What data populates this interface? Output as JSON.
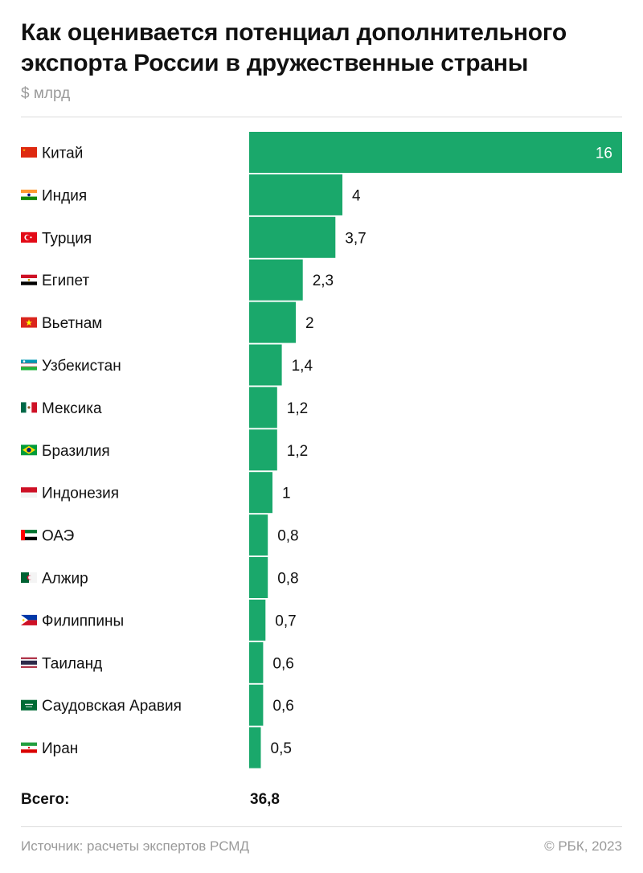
{
  "header": {
    "title_line1": "Как оценивается потенциал дополнительного",
    "title_line2": "экспорта России в дружественные страны",
    "unit": "$ млрд"
  },
  "colors": {
    "bar": "#1aa86b"
  },
  "chart_data": {
    "type": "bar",
    "orientation": "horizontal",
    "title": "Как оценивается потенциал дополнительного экспорта России в дружественные страны",
    "unit": "$ млрд",
    "categories": [
      "Китай",
      "Индия",
      "Турция",
      "Египет",
      "Вьетнам",
      "Узбекистан",
      "Мексика",
      "Бразилия",
      "Индонезия",
      "ОАЭ",
      "Алжир",
      "Филиппины",
      "Таиланд",
      "Саудовская Аравия",
      "Иран"
    ],
    "values": [
      16,
      4,
      3.7,
      2.3,
      2,
      1.4,
      1.2,
      1.2,
      1,
      0.8,
      0.8,
      0.7,
      0.6,
      0.6,
      0.5
    ],
    "value_labels": [
      "16",
      "4",
      "3,7",
      "2,3",
      "2",
      "1,4",
      "1,2",
      "1,2",
      "1",
      "0,8",
      "0,8",
      "0,7",
      "0,6",
      "0,6",
      "0,5"
    ],
    "flags": [
      "flag-china-icon",
      "flag-india-icon",
      "flag-turkey-icon",
      "flag-egypt-icon",
      "flag-vietnam-icon",
      "flag-uzbekistan-icon",
      "flag-mexico-icon",
      "flag-brazil-icon",
      "flag-indonesia-icon",
      "flag-uae-icon",
      "flag-algeria-icon",
      "flag-philippines-icon",
      "flag-thailand-icon",
      "flag-saudi-arabia-icon",
      "flag-iran-icon"
    ],
    "xlim": [
      0,
      16
    ]
  },
  "total": {
    "label": "Всего:",
    "value": "36,8"
  },
  "footer": {
    "source": "Источник: расчеты экспертов РСМД",
    "copyright": "© РБК, 2023"
  }
}
